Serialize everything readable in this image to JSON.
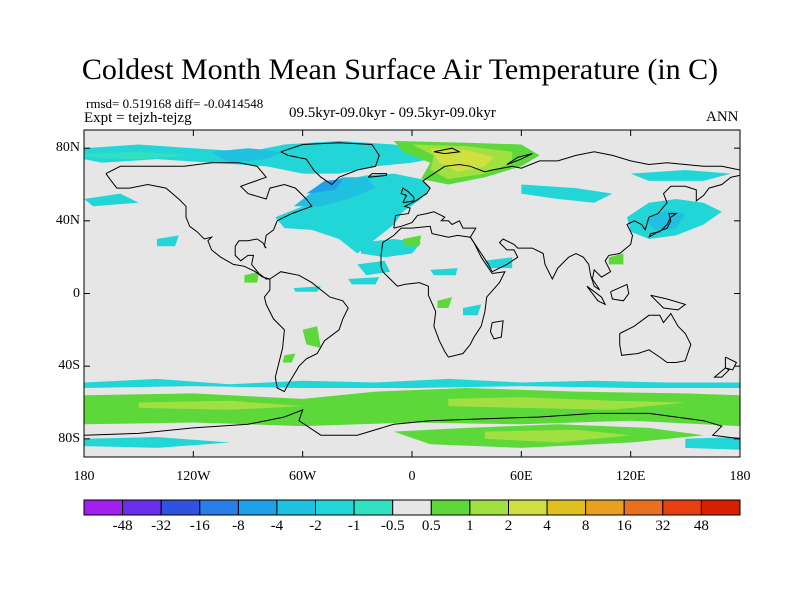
{
  "title": "Coldest Month Mean Surface Air Temperature (in C)",
  "stats": {
    "rmsd": "rmsd= 0.519168 diff= -0.0414548",
    "expt": "Expt = tejzh-tejzg",
    "subtitle": "09.5kyr-09.0kyr - 09.5kyr-09.0kyr",
    "period": "ANN"
  },
  "axes": {
    "y_ticks": [
      {
        "label": "80N",
        "lat": 80
      },
      {
        "label": "40N",
        "lat": 40
      },
      {
        "label": "0",
        "lat": 0
      },
      {
        "label": "40S",
        "lat": -40
      },
      {
        "label": "80S",
        "lat": -80
      }
    ],
    "x_ticks": [
      {
        "label": "180",
        "lon": -180
      },
      {
        "label": "120W",
        "lon": -120
      },
      {
        "label": "60W",
        "lon": -60
      },
      {
        "label": "0",
        "lon": 0
      },
      {
        "label": "60E",
        "lon": 60
      },
      {
        "label": "120E",
        "lon": 120
      },
      {
        "label": "180",
        "lon": 180
      }
    ],
    "lon_range": [
      -180,
      180
    ],
    "lat_range": [
      -90,
      90
    ]
  },
  "colorbar": {
    "labels": [
      "-48",
      "-32",
      "-16",
      "-8",
      "-4",
      "-2",
      "-1",
      "-0.5",
      "0.5",
      "1",
      "2",
      "4",
      "8",
      "16",
      "32",
      "48"
    ],
    "colors": [
      "#a020f0",
      "#6a2ee8",
      "#3052e0",
      "#2a7ee8",
      "#1fa0e8",
      "#20c0e0",
      "#22d6d8",
      "#30e0c0",
      "#e6e6e6",
      "#5cd83a",
      "#a0e040",
      "#d0e040",
      "#e0c020",
      "#e8a020",
      "#e87020",
      "#e84010",
      "#d82000"
    ]
  },
  "map_colors": {
    "land_background": "#e6e6e6",
    "cyan": "#22d6d8",
    "teal": "#30e0c0",
    "light_blue": "#20c0e0",
    "blue": "#1fa0e8",
    "green": "#5cd83a",
    "yellow_green": "#a0e040",
    "yellow": "#d0e040",
    "coast": "#000000"
  }
}
